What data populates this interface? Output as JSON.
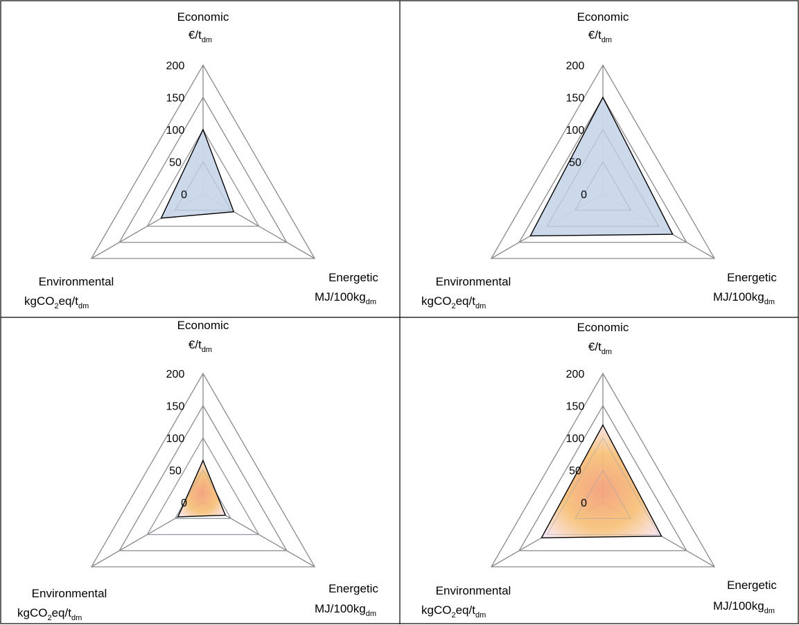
{
  "chart_data": [
    {
      "type": "radar",
      "axes": [
        "Economic",
        "Energetic",
        "Environmental"
      ],
      "axis_units": [
        {
          "base": "€/t",
          "sub": "dm",
          "sub2": ""
        },
        {
          "base": "MJ/100kg",
          "sub": "dm",
          "sub2": ""
        },
        {
          "base": "kgCO",
          "sub": "2",
          "mid": "eq/t",
          "sub2": "dm"
        }
      ],
      "ticks": [
        "0",
        "50",
        "100",
        "150",
        "200"
      ],
      "range": [
        0,
        200
      ],
      "values": [
        100,
        55,
        75
      ],
      "fill": "blue"
    },
    {
      "type": "radar",
      "axes": [
        "Economic",
        "Energetic",
        "Environmental"
      ],
      "axis_units": [
        {
          "base": "€/t",
          "sub": "dm",
          "sub2": ""
        },
        {
          "base": "MJ/100kg",
          "sub": "dm",
          "sub2": ""
        },
        {
          "base": "kgCO",
          "sub": "2",
          "mid": "eq/t",
          "sub2": "dm"
        }
      ],
      "ticks": [
        "0",
        "50",
        "100",
        "150",
        "200"
      ],
      "range": [
        0,
        200
      ],
      "values": [
        150,
        125,
        130
      ],
      "fill": "blue"
    },
    {
      "type": "radar",
      "axes": [
        "Economic",
        "Energetic",
        "Environmental"
      ],
      "axis_units": [
        {
          "base": "€/t",
          "sub": "dm",
          "sub2": ""
        },
        {
          "base": "MJ/100kg",
          "sub": "dm",
          "sub2": ""
        },
        {
          "base": "kgCO",
          "sub": "2",
          "mid": "eq/t",
          "sub2": "dm"
        }
      ],
      "ticks": [
        "0",
        "50",
        "100",
        "150",
        "200"
      ],
      "range": [
        0,
        200
      ],
      "values": [
        65,
        40,
        45
      ],
      "fill": "orange"
    },
    {
      "type": "radar",
      "axes": [
        "Economic",
        "Energetic",
        "Environmental"
      ],
      "axis_units": [
        {
          "base": "€/t",
          "sub": "dm",
          "sub2": ""
        },
        {
          "base": "MJ/100kg",
          "sub": "dm",
          "sub2": ""
        },
        {
          "base": "kgCO",
          "sub": "2",
          "mid": "eq/t",
          "sub2": "dm"
        }
      ],
      "ticks": [
        "0",
        "50",
        "100",
        "150",
        "200"
      ],
      "range": [
        0,
        200
      ],
      "values": [
        120,
        105,
        110
      ],
      "fill": "orange"
    }
  ],
  "colors": {
    "grid": "#8a8a8a",
    "outline": "#000000",
    "blue_fill": "#c9d7ea",
    "orange_core": "#f3a07c",
    "orange_mid": "#f7c27a",
    "orange_edge": "#fbe6ee"
  }
}
